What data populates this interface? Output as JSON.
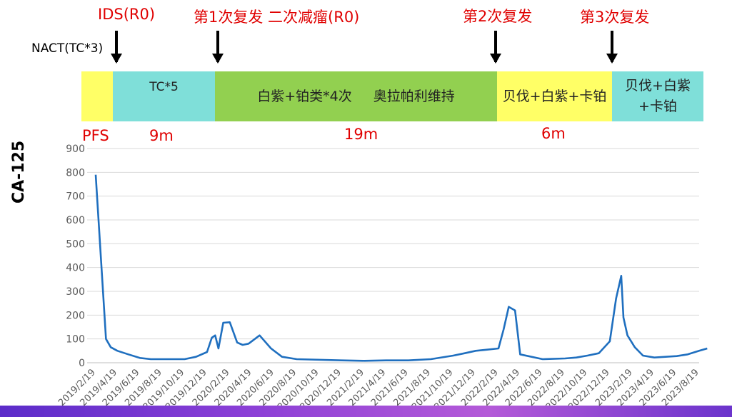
{
  "events": {
    "nact": "NACT(TC*3)",
    "ids": "IDS(R0)",
    "r1": "第1次复发 二次减瘤(R0)",
    "r2": "第2次复发",
    "r3": "第3次复发"
  },
  "timeline": {
    "seg1": "",
    "seg2": "TC*5",
    "seg3a": "白紫+铂类*4次",
    "seg3b": "奥拉帕利维持",
    "seg4": "贝伐+白紫+卡铂",
    "seg5": "贝伐+白紫+卡铂",
    "colors": {
      "yellow": "#ffff66",
      "cyan": "#7fdfd9",
      "green": "#92d050"
    }
  },
  "durations": {
    "pfs": "PFS",
    "d1": "9m",
    "d2": "19m",
    "d3": "6m"
  },
  "chart_data": {
    "type": "line",
    "ylabel": "CA-125",
    "xlabel": "",
    "ylim": [
      0,
      900
    ],
    "yticks": [
      0,
      100,
      200,
      300,
      400,
      500,
      600,
      700,
      800,
      900
    ],
    "xticks": [
      "2019/2/19",
      "2019/4/19",
      "2019/6/19",
      "2019/8/19",
      "2019/10/19",
      "2019/12/19",
      "2020/2/19",
      "2020/4/19",
      "2020/6/19",
      "2020/8/19",
      "2020/10/19",
      "2020/12/19",
      "2021/2/19",
      "2021/4/19",
      "2021/6/19",
      "2021/8/19",
      "2021/10/19",
      "2021/12/19",
      "2022/2/19",
      "2022/4/19",
      "2022/6/19",
      "2022/8/19",
      "2022/10/19",
      "2022/12/19",
      "2023/2/19",
      "2023/4/19",
      "2023/6/19",
      "2023/8/19"
    ],
    "line_color": "#1f6fbf",
    "grid": true,
    "series": [
      {
        "x": [
          "2019/2/19",
          "2019/3/19",
          "2019/4/1",
          "2019/4/19",
          "2019/5/19",
          "2019/6/19",
          "2019/7/19",
          "2019/8/19",
          "2019/10/19",
          "2019/11/19",
          "2019/12/19",
          "2020/1/1",
          "2020/1/10",
          "2020/1/19",
          "2020/2/1",
          "2020/2/19",
          "2020/3/10",
          "2020/3/25",
          "2020/4/10",
          "2020/5/10",
          "2020/6/10",
          "2020/7/10",
          "2020/8/19",
          "2020/12/19",
          "2021/2/19",
          "2021/4/19",
          "2021/6/19",
          "2021/8/19",
          "2021/10/19",
          "2021/11/19",
          "2021/12/19",
          "2022/1/19",
          "2022/2/19",
          "2022/3/5",
          "2022/3/19",
          "2022/4/5",
          "2022/4/19",
          "2022/6/19",
          "2022/8/19",
          "2022/9/19",
          "2022/10/19",
          "2022/11/19",
          "2022/12/19",
          "2023/1/5",
          "2023/1/19",
          "2023/1/25",
          "2023/2/5",
          "2023/2/25",
          "2023/3/19",
          "2023/4/19",
          "2023/6/19",
          "2023/7/19",
          "2023/8/19",
          "2023/9/10"
        ],
        "values": [
          790,
          100,
          65,
          50,
          35,
          20,
          15,
          15,
          15,
          25,
          45,
          105,
          115,
          60,
          168,
          170,
          85,
          75,
          80,
          115,
          60,
          25,
          15,
          10,
          8,
          10,
          10,
          15,
          30,
          40,
          50,
          55,
          60,
          140,
          235,
          220,
          35,
          15,
          18,
          22,
          30,
          40,
          90,
          270,
          365,
          190,
          115,
          65,
          30,
          22,
          28,
          35,
          50,
          60
        ]
      }
    ]
  }
}
